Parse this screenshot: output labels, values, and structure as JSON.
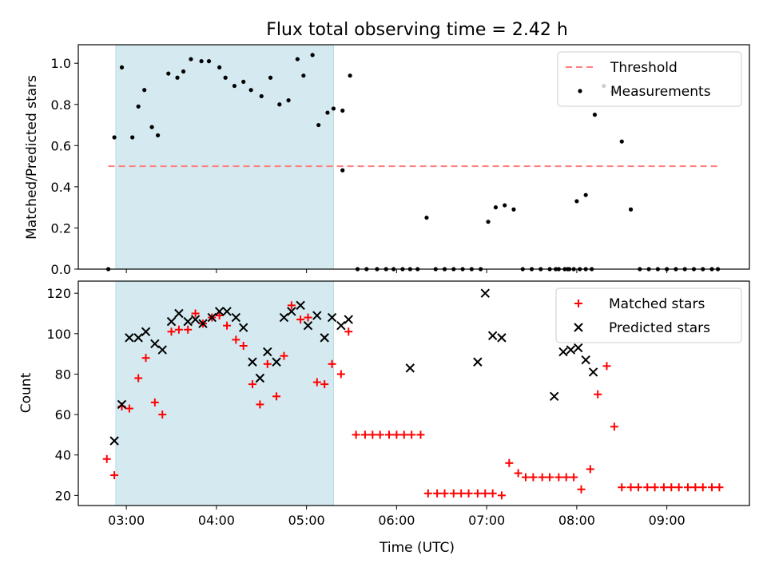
{
  "title": "Flux total observing time = 2.42 h",
  "xlabel": "Time (UTC)",
  "x_ticks": [
    "03:00",
    "04:00",
    "05:00",
    "06:00",
    "07:00",
    "08:00",
    "09:00"
  ],
  "colors": {
    "shade": "#d4eaf0",
    "threshold": "#ff7f7f",
    "measurement": "#000000",
    "matched": "#ff0000",
    "predicted": "#000000"
  },
  "chart_data": [
    {
      "type": "scatter",
      "ylabel": "Matched/Predicted stars",
      "xlim": [
        "02:28",
        "09:55"
      ],
      "ylim": [
        0,
        1.09
      ],
      "y_ticks": [
        "0.0",
        "0.2",
        "0.4",
        "0.6",
        "0.8",
        "1.0"
      ],
      "y_tick_values": [
        0,
        0.2,
        0.4,
        0.6,
        0.8,
        1.0
      ],
      "shaded_interval": [
        "02:53",
        "05:18"
      ],
      "legend_position": "upper right",
      "threshold": {
        "name": "Threshold",
        "value": 0.5,
        "x_range": [
          "02:48",
          "09:34"
        ],
        "style": "dashed"
      },
      "series": [
        {
          "name": "Measurements",
          "x": [
            "02:48",
            "02:52",
            "02:57",
            "03:04",
            "03:08",
            "03:12",
            "03:17",
            "03:21",
            "03:28",
            "03:34",
            "03:38",
            "03:43",
            "03:50",
            "03:55",
            "04:02",
            "04:06",
            "04:12",
            "04:18",
            "04:23",
            "04:30",
            "04:36",
            "04:42",
            "04:48",
            "04:54",
            "04:58",
            "05:04",
            "05:08",
            "05:14",
            "05:18",
            "05:24",
            "05:29",
            "05:34",
            "05:40",
            "05:47",
            "05:53",
            "05:58",
            "06:04",
            "06:09",
            "06:14",
            "06:20",
            "06:26",
            "06:32",
            "06:38",
            "06:44",
            "06:50",
            "06:56",
            "07:01",
            "07:06",
            "07:12",
            "07:18",
            "07:24",
            "07:30",
            "07:36",
            "07:42",
            "07:48",
            "07:54",
            "08:00",
            "08:06",
            "08:12",
            "08:18",
            "08:24",
            "08:30",
            "08:36",
            "08:42",
            "08:48",
            "08:54",
            "09:00",
            "09:06",
            "09:12",
            "09:18",
            "09:24",
            "09:30",
            "09:34",
            "07:46",
            "07:52",
            "07:55",
            "07:58",
            "08:02",
            "08:06",
            "08:10",
            "05:24"
          ],
          "y": [
            0,
            0.64,
            0.98,
            0.64,
            0.79,
            0.87,
            0.69,
            0.65,
            0.95,
            0.93,
            0.96,
            1.02,
            1.01,
            1.01,
            0.98,
            0.93,
            0.89,
            0.91,
            0.87,
            0.84,
            0.93,
            0.8,
            0.82,
            1.02,
            0.94,
            1.04,
            0.7,
            0.76,
            0.78,
            0.77,
            0.94,
            0,
            0,
            0,
            0,
            0,
            0,
            0,
            0,
            0.25,
            0,
            0,
            0,
            0,
            0,
            0,
            0.23,
            0.3,
            0.31,
            0.29,
            0,
            0,
            0,
            0,
            0,
            0,
            0.33,
            0.36,
            0.75,
            0.89,
            0.86,
            0.62,
            0.29,
            0,
            0,
            0,
            0,
            0,
            0,
            0,
            0,
            0,
            0,
            0,
            0,
            0,
            0,
            0,
            0,
            0,
            0.48
          ]
        }
      ]
    },
    {
      "type": "scatter",
      "ylabel": "Count",
      "xlabel": "Time (UTC)",
      "xlim": [
        "02:28",
        "09:55"
      ],
      "ylim": [
        15,
        126
      ],
      "y_ticks": [
        "20",
        "40",
        "60",
        "80",
        "100",
        "120"
      ],
      "y_tick_values": [
        20,
        40,
        60,
        80,
        100,
        120
      ],
      "shaded_interval": [
        "02:53",
        "05:18"
      ],
      "legend_position": "upper right",
      "series": [
        {
          "name": "Matched stars",
          "marker": "+",
          "x": [
            "02:47",
            "02:52",
            "02:57",
            "03:02",
            "03:08",
            "03:13",
            "03:19",
            "03:24",
            "03:30",
            "03:35",
            "03:41",
            "03:46",
            "03:51",
            "03:57",
            "04:02",
            "04:07",
            "04:13",
            "04:18",
            "04:24",
            "04:29",
            "04:34",
            "04:40",
            "04:45",
            "04:50",
            "04:56",
            "05:01",
            "05:07",
            "05:12",
            "05:17",
            "05:23",
            "05:28",
            "05:33",
            "05:39",
            "05:44",
            "05:49",
            "05:55",
            "06:00",
            "06:05",
            "06:10",
            "06:16",
            "06:21",
            "06:27",
            "06:32",
            "06:38",
            "06:43",
            "06:48",
            "06:54",
            "06:59",
            "07:04",
            "07:10",
            "07:15",
            "07:21",
            "07:26",
            "07:31",
            "07:37",
            "07:42",
            "07:48",
            "07:53",
            "07:58",
            "08:03",
            "08:09",
            "08:14",
            "08:20",
            "08:25",
            "08:30",
            "08:36",
            "08:41",
            "08:47",
            "08:52",
            "08:58",
            "09:03",
            "09:08",
            "09:14",
            "09:19",
            "09:24",
            "09:30",
            "09:35"
          ],
          "y": [
            38,
            30,
            64,
            63,
            78,
            88,
            66,
            60,
            101,
            102,
            102,
            110,
            105,
            108,
            109,
            104,
            97,
            94,
            75,
            65,
            85,
            69,
            89,
            114,
            107,
            108,
            76,
            75,
            85,
            80,
            101,
            50,
            50,
            50,
            50,
            50,
            50,
            50,
            50,
            50,
            21,
            21,
            21,
            21,
            21,
            21,
            21,
            21,
            21,
            20,
            36,
            31,
            29,
            29,
            29,
            29,
            29,
            29,
            29,
            23,
            33,
            70,
            84,
            54,
            24,
            24,
            24,
            24,
            24,
            24,
            24,
            24,
            24,
            24,
            24,
            24,
            24
          ]
        },
        {
          "name": "Predicted stars",
          "marker": "x",
          "x": [
            "02:52",
            "02:57",
            "03:02",
            "03:08",
            "03:13",
            "03:19",
            "03:24",
            "03:30",
            "03:35",
            "03:41",
            "03:46",
            "03:51",
            "03:57",
            "04:02",
            "04:07",
            "04:13",
            "04:18",
            "04:24",
            "04:29",
            "04:34",
            "04:40",
            "04:45",
            "04:50",
            "04:56",
            "05:01",
            "05:07",
            "05:12",
            "05:17",
            "05:23",
            "05:28",
            "06:09",
            "06:54",
            "06:59",
            "07:04",
            "07:10",
            "07:45",
            "07:51",
            "07:56",
            "08:01",
            "08:06",
            "08:11"
          ],
          "y": [
            47,
            65,
            98,
            98,
            101,
            95,
            92,
            106,
            110,
            106,
            107,
            105,
            108,
            111,
            111,
            108,
            103,
            86,
            78,
            91,
            86,
            108,
            111,
            114,
            104,
            109,
            98,
            108,
            104,
            107,
            83,
            86,
            120,
            99,
            98,
            69,
            91,
            92,
            93,
            87,
            81
          ]
        }
      ]
    }
  ]
}
